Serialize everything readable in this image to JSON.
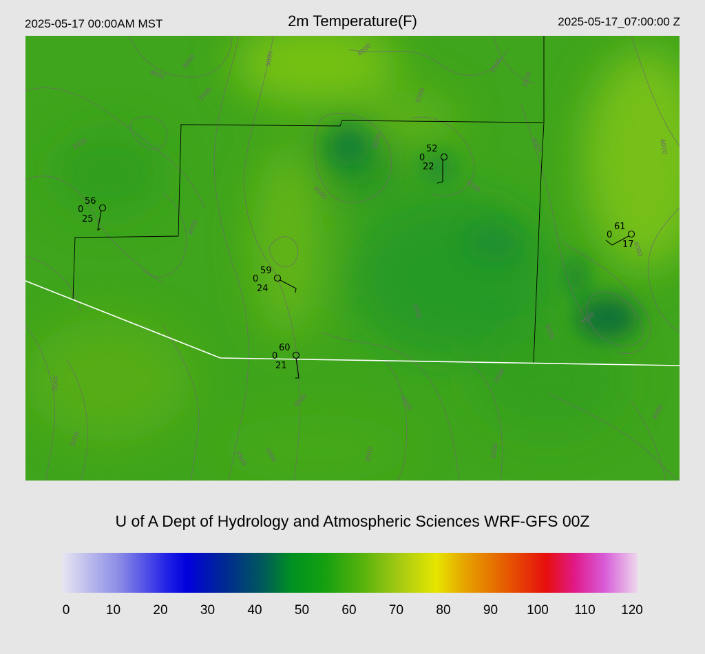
{
  "header": {
    "local_time": "2025-05-17 00:00AM MST",
    "title": "2m Temperature(F)",
    "utc_time": "2025-05-17_07:00:00 Z"
  },
  "credit": "U of A Dept of Hydrology and Atmospheric Sciences WRF-GFS 00Z",
  "contour_labels": [
    "4000",
    "4000",
    "3000",
    "3500",
    "3500",
    "4000",
    "4500",
    "5000",
    "5000",
    "3500",
    "4000",
    "4500",
    "4500",
    "5000",
    "4000",
    "3500",
    "5000",
    "3500",
    "3500",
    "3000",
    "4000",
    "4500",
    "3000",
    "3500",
    "4000",
    "4500",
    "3500",
    "3000",
    "4000"
  ],
  "stations": [
    {
      "temp": "56",
      "wind": "0",
      "dew": "25"
    },
    {
      "temp": "52",
      "wind": "0",
      "dew": "22"
    },
    {
      "temp": "61",
      "wind": "0",
      "dew": "17"
    },
    {
      "temp": "59",
      "wind": "0",
      "dew": "24"
    },
    {
      "temp": "60",
      "wind": "0",
      "dew": "21"
    }
  ],
  "colorbar": {
    "ticks": [
      "0",
      "10",
      "20",
      "30",
      "40",
      "50",
      "60",
      "70",
      "80",
      "90",
      "100",
      "110",
      "120"
    ],
    "min": 0,
    "max": 120,
    "stops": [
      {
        "v": 0,
        "c": "#e6e6f2"
      },
      {
        "v": 12,
        "c": "#8a8ae6"
      },
      {
        "v": 22,
        "c": "#2020e6"
      },
      {
        "v": 26,
        "c": "#0000dd"
      },
      {
        "v": 33,
        "c": "#00249a"
      },
      {
        "v": 42,
        "c": "#005a5a"
      },
      {
        "v": 48,
        "c": "#009120"
      },
      {
        "v": 55,
        "c": "#16a010"
      },
      {
        "v": 63,
        "c": "#5ab40c"
      },
      {
        "v": 70,
        "c": "#a2c814"
      },
      {
        "v": 78,
        "c": "#e6e600"
      },
      {
        "v": 84,
        "c": "#e6a300"
      },
      {
        "v": 92,
        "c": "#e66000"
      },
      {
        "v": 101,
        "c": "#e60e0e"
      },
      {
        "v": 107,
        "c": "#e01a8a"
      },
      {
        "v": 113,
        "c": "#d85ad8"
      },
      {
        "v": 120,
        "c": "#ecd8ec"
      }
    ]
  },
  "colors": {
    "background": "#e6e6e6",
    "map_base": "#3fa51c",
    "border_line": "#000000",
    "state_line": "#ffffff",
    "contour": "#6b6b6b"
  }
}
